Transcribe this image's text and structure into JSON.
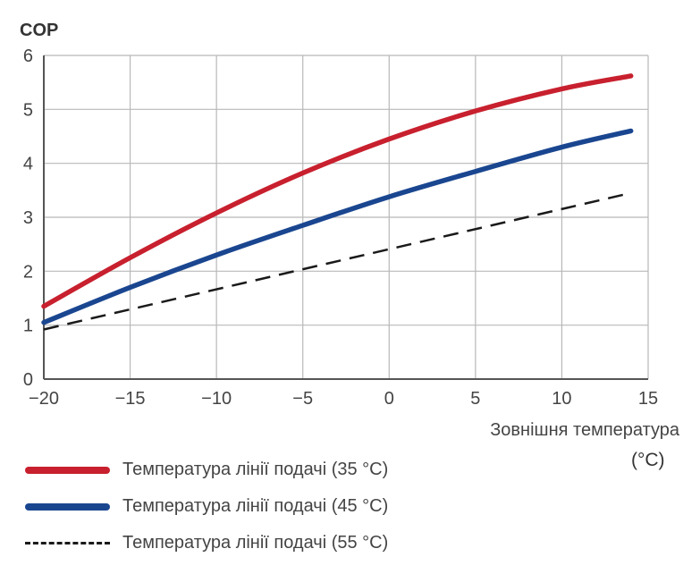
{
  "chart_data": {
    "type": "line",
    "ylabel": "COP",
    "xlabel": "Зовнішня температура",
    "xunit": "(°C)",
    "xlim": [
      -20,
      15
    ],
    "ylim": [
      0,
      6
    ],
    "xticks": [
      -20,
      -15,
      -10,
      -5,
      0,
      5,
      10,
      15
    ],
    "yticks": [
      0,
      1,
      2,
      3,
      4,
      5,
      6
    ],
    "grid": true,
    "legend_position": "bottom-left",
    "series": [
      {
        "name": "Температура лінії подачі (35 °C)",
        "color": "#c8202e",
        "style": "solid",
        "x": [
          -20,
          -15,
          -10,
          -5,
          0,
          5,
          10,
          14
        ],
        "y": [
          1.35,
          2.25,
          3.08,
          3.82,
          4.45,
          4.97,
          5.38,
          5.62
        ]
      },
      {
        "name": "Температура лінії подачі (45 °C)",
        "color": "#1a4690",
        "style": "solid",
        "x": [
          -20,
          -15,
          -10,
          -5,
          0,
          5,
          10,
          14
        ],
        "y": [
          1.05,
          1.7,
          2.3,
          2.85,
          3.38,
          3.85,
          4.3,
          4.6
        ]
      },
      {
        "name": "Температура лінії подачі (55 °C)",
        "color": "#1a1a1a",
        "style": "dashed",
        "x": [
          -20,
          14
        ],
        "y": [
          0.92,
          3.45
        ]
      }
    ]
  }
}
